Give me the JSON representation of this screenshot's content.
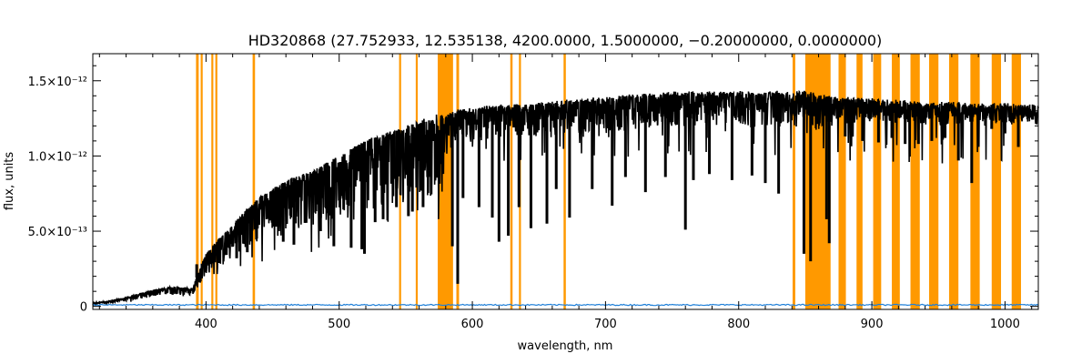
{
  "chart_data": {
    "type": "line",
    "title": "HD320868   (27.752933, 12.535138, 4200.0000, 1.5000000, −0.20000000, 0.0000000)",
    "xlabel": "wavelength, nm",
    "ylabel": "flux, units",
    "xlim": [
      315,
      1025
    ],
    "ylim": [
      -2e-14,
      1.68e-12
    ],
    "x_ticks": [
      400,
      500,
      600,
      700,
      800,
      900,
      1000
    ],
    "x_tick_labels": [
      "400",
      "500",
      "600",
      "700",
      "800",
      "900",
      "1000"
    ],
    "y_ticks": [
      0,
      5e-13,
      1e-12,
      1.5e-12
    ],
    "y_tick_labels": [
      "0",
      "5.0×10⁻¹³",
      "1.0×10⁻¹²",
      "1.5×10⁻¹²"
    ],
    "grid": false,
    "colors": {
      "flux": "#000000",
      "error": "#1e7fd8",
      "mask": "#ff9900"
    },
    "series": [
      {
        "kind": "flux",
        "x": [
          315,
          330,
          345,
          360,
          375,
          390,
          395,
          400,
          410,
          420,
          430,
          440,
          450,
          460,
          470,
          480,
          490,
          500,
          510,
          520,
          530,
          540,
          550,
          560,
          570,
          575,
          580,
          590,
          600,
          620,
          640,
          660,
          680,
          700,
          720,
          740,
          760,
          780,
          800,
          820,
          840,
          850,
          860,
          870,
          880,
          900,
          920,
          940,
          960,
          980,
          1000,
          1010,
          1025
        ],
        "y": [
          2e-14,
          4e-14,
          7e-14,
          1.1e-13,
          1.3e-13,
          1.2e-13,
          2.4e-13,
          3.5e-13,
          4.5e-13,
          5.4e-13,
          6.4e-13,
          7.2e-13,
          7.8e-13,
          8.3e-13,
          8.7e-13,
          8.9e-13,
          9.5e-13,
          1e-12,
          1.05e-12,
          1.1e-12,
          1.13e-12,
          1.16e-12,
          1.19e-12,
          1.23e-12,
          1.25e-12,
          1.28e-12,
          1.26e-12,
          1.3e-12,
          1.31e-12,
          1.33e-12,
          1.34e-12,
          1.35e-12,
          1.37e-12,
          1.38e-12,
          1.4e-12,
          1.41e-12,
          1.42e-12,
          1.42e-12,
          1.42e-12,
          1.42e-12,
          1.42e-12,
          1.42e-12,
          1.4e-12,
          1.39e-12,
          1.38e-12,
          1.37e-12,
          1.36e-12,
          1.35e-12,
          1.35e-12,
          1.34e-12,
          1.34e-12,
          1.33e-12,
          1.33e-12
        ]
      },
      {
        "kind": "error",
        "x": [
          315,
          1025
        ],
        "y": [
          1e-14,
          1e-14
        ]
      }
    ],
    "absorption_lines": [
      {
        "x": 393,
        "y": 2.8e-13
      },
      {
        "x": 397,
        "y": 2.6e-13
      },
      {
        "x": 410,
        "y": 2.9e-13
      },
      {
        "x": 423,
        "y": 3.2e-13
      },
      {
        "x": 431,
        "y": 3.6e-13
      },
      {
        "x": 438,
        "y": 4.5e-13
      },
      {
        "x": 453,
        "y": 5.3e-13
      },
      {
        "x": 458,
        "y": 4.3e-13
      },
      {
        "x": 466,
        "y": 4.1e-13
      },
      {
        "x": 486,
        "y": 5e-13
      },
      {
        "x": 491,
        "y": 6.2e-13
      },
      {
        "x": 496,
        "y": 4e-13
      },
      {
        "x": 509,
        "y": 3.9e-13
      },
      {
        "x": 517,
        "y": 3.8e-13
      },
      {
        "x": 519,
        "y": 3.5e-13
      },
      {
        "x": 527,
        "y": 5.6e-13
      },
      {
        "x": 533,
        "y": 5.8e-13
      },
      {
        "x": 543,
        "y": 6.6e-13
      },
      {
        "x": 552,
        "y": 6e-13
      },
      {
        "x": 555,
        "y": 6.3e-13
      },
      {
        "x": 563,
        "y": 6.6e-13
      },
      {
        "x": 585,
        "y": 4e-13
      },
      {
        "x": 589,
        "y": 1.5e-13
      },
      {
        "x": 593,
        "y": 7.2e-13
      },
      {
        "x": 605,
        "y": 6.6e-13
      },
      {
        "x": 615,
        "y": 5.9e-13
      },
      {
        "x": 620,
        "y": 4.3e-13
      },
      {
        "x": 627,
        "y": 4.7e-13
      },
      {
        "x": 635,
        "y": 6.6e-13
      },
      {
        "x": 644,
        "y": 5.2e-13
      },
      {
        "x": 656,
        "y": 5.5e-13
      },
      {
        "x": 663,
        "y": 7.8e-13
      },
      {
        "x": 673,
        "y": 5.9e-13
      },
      {
        "x": 690,
        "y": 7.8e-13
      },
      {
        "x": 705,
        "y": 6.7e-13
      },
      {
        "x": 715,
        "y": 8.6e-13
      },
      {
        "x": 730,
        "y": 7.6e-13
      },
      {
        "x": 745,
        "y": 8.6e-13
      },
      {
        "x": 760,
        "y": 5.1e-13
      },
      {
        "x": 766,
        "y": 8.4e-13
      },
      {
        "x": 778,
        "y": 8.8e-13
      },
      {
        "x": 795,
        "y": 8.4e-13
      },
      {
        "x": 810,
        "y": 8.7e-13
      },
      {
        "x": 820,
        "y": 8.2e-13
      },
      {
        "x": 830,
        "y": 7.5e-13
      },
      {
        "x": 849,
        "y": 3.5e-13
      },
      {
        "x": 854,
        "y": 3e-13
      },
      {
        "x": 866,
        "y": 5.8e-13
      },
      {
        "x": 868,
        "y": 4.2e-13
      },
      {
        "x": 880,
        "y": 1.13e-12
      },
      {
        "x": 893,
        "y": 1.1e-12
      },
      {
        "x": 905,
        "y": 1.09e-12
      },
      {
        "x": 915,
        "y": 1.12e-12
      },
      {
        "x": 925,
        "y": 1.08e-12
      },
      {
        "x": 935,
        "y": 1.08e-12
      },
      {
        "x": 945,
        "y": 1.1e-12
      },
      {
        "x": 955,
        "y": 1.12e-12
      },
      {
        "x": 965,
        "y": 9.7e-13
      },
      {
        "x": 975,
        "y": 8.2e-13
      },
      {
        "x": 990,
        "y": 1.18e-12
      },
      {
        "x": 1000,
        "y": 1.15e-12
      },
      {
        "x": 1010,
        "y": 1.06e-12
      }
    ],
    "masked_regions": [
      [
        392.5,
        394.5
      ],
      [
        396.0,
        397.5
      ],
      [
        404.0,
        405.5
      ],
      [
        407.0,
        408.5
      ],
      [
        435.0,
        436.8
      ],
      [
        545.0,
        546.5
      ],
      [
        557.5,
        559.0
      ],
      [
        574.0,
        585.5
      ],
      [
        588.0,
        590.0
      ],
      [
        628.5,
        630.2
      ],
      [
        635.0,
        636.5
      ],
      [
        668.5,
        670.2
      ],
      [
        840.5,
        842.5
      ],
      [
        850.0,
        869.0
      ],
      [
        875.0,
        880.5
      ],
      [
        888.5,
        893.0
      ],
      [
        901.0,
        907.0
      ],
      [
        915.0,
        921.0
      ],
      [
        929.0,
        936.0
      ],
      [
        943.0,
        950.0
      ],
      [
        958.0,
        965.0
      ],
      [
        974.0,
        981.0
      ],
      [
        990.0,
        997.0
      ],
      [
        1005.0,
        1012.0
      ]
    ]
  }
}
